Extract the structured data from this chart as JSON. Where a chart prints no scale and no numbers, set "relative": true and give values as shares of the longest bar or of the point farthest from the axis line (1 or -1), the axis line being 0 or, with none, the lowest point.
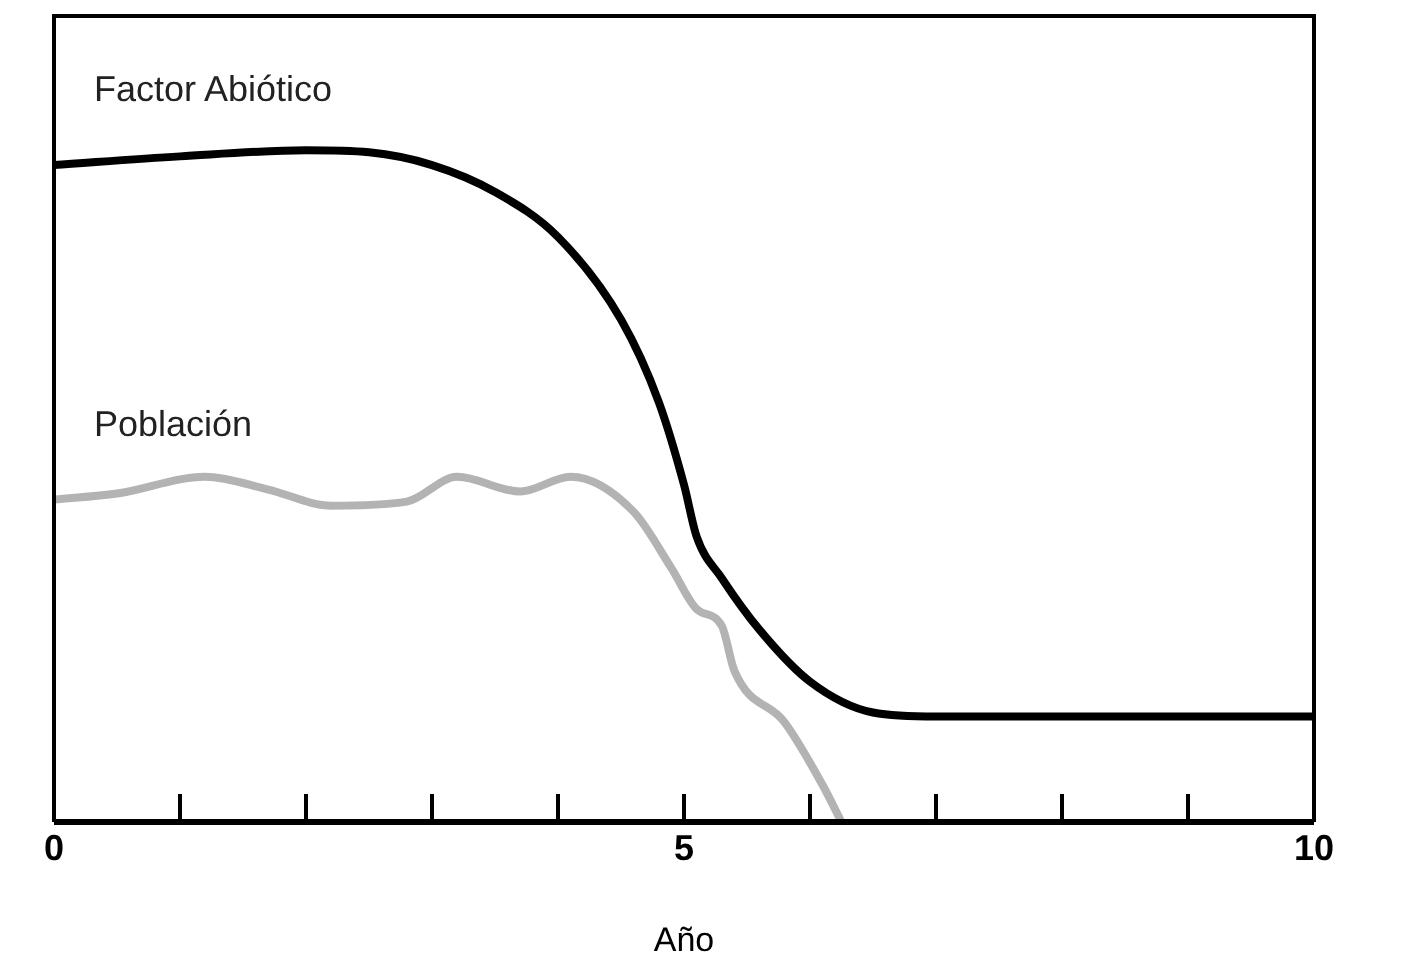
{
  "chart_data": {
    "type": "line",
    "relative": true,
    "xlabel": "Año",
    "xlim": [
      0,
      10
    ],
    "xticks": [
      0,
      {
        "value": 1,
        "label": null
      },
      {
        "value": 2,
        "label": null
      },
      {
        "value": 3,
        "label": null
      },
      {
        "value": 4,
        "label": null
      },
      5,
      {
        "value": 6,
        "label": null
      },
      {
        "value": 7,
        "label": null
      },
      {
        "value": 8,
        "label": null
      },
      {
        "value": 9,
        "label": null
      },
      10
    ],
    "grid": false,
    "legend": false,
    "marker": "none",
    "line_style": "solid",
    "tick_labels": "x",
    "series": [
      {
        "name": "Factor Abiótico",
        "color": "#000000",
        "x": [
          0,
          1,
          2,
          2.5,
          3,
          3.5,
          4,
          4.5,
          4.8,
          5,
          5.1,
          5.3,
          5.6,
          6,
          6.5,
          7,
          10
        ],
        "values": [
          0.978,
          0.991,
          1,
          0.997,
          0.978,
          0.938,
          0.871,
          0.748,
          0.625,
          0.502,
          0.425,
          0.363,
          0.286,
          0.209,
          0.163,
          0.157,
          0.157
        ]
      },
      {
        "name": "Población",
        "color": "#b3b3b3",
        "x": [
          0,
          0.5,
          1.2,
          1.7,
          2.2,
          2.8,
          3.2,
          3.7,
          4.1,
          4.6,
          4.9,
          5.1,
          5.3,
          5.4,
          5.8,
          6.1,
          6.25
        ],
        "values": [
          0.48,
          0.489,
          0.514,
          0.495,
          0.471,
          0.477,
          0.514,
          0.492,
          0.514,
          0.462,
          0.378,
          0.317,
          0.292,
          0.225,
          0.148,
          0.055,
          0
        ]
      }
    ]
  }
}
